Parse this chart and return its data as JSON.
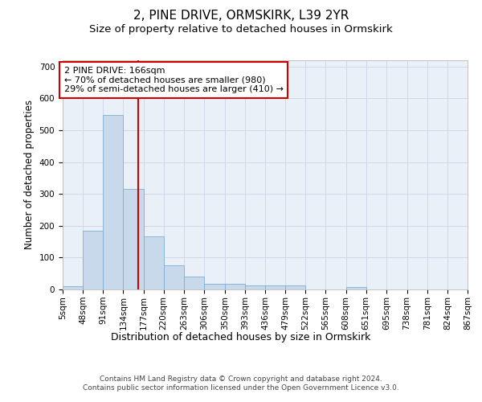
{
  "title": "2, PINE DRIVE, ORMSKIRK, L39 2YR",
  "subtitle": "Size of property relative to detached houses in Ormskirk",
  "xlabel": "Distribution of detached houses by size in Ormskirk",
  "ylabel": "Number of detached properties",
  "bin_edges": [
    5,
    48,
    91,
    134,
    177,
    220,
    263,
    306,
    350,
    393,
    436,
    479,
    522,
    565,
    608,
    651,
    695,
    738,
    781,
    824,
    867
  ],
  "bar_heights": [
    10,
    185,
    548,
    315,
    168,
    77,
    40,
    18,
    18,
    13,
    13,
    12,
    0,
    0,
    8,
    0,
    0,
    0,
    0,
    0
  ],
  "bar_color": "#c9d9ec",
  "bar_edge_color": "#7fadd4",
  "property_size": 166,
  "red_line_color": "#cc0000",
  "annotation_line1": "2 PINE DRIVE: 166sqm",
  "annotation_line2": "← 70% of detached houses are smaller (980)",
  "annotation_line3": "29% of semi-detached houses are larger (410) →",
  "annotation_box_color": "#ffffff",
  "annotation_box_edge": "#cc0000",
  "ylim": [
    0,
    720
  ],
  "yticks": [
    0,
    100,
    200,
    300,
    400,
    500,
    600,
    700
  ],
  "grid_color": "#d0d8e8",
  "background_color": "#eaf0f8",
  "footer_text": "Contains HM Land Registry data © Crown copyright and database right 2024.\nContains public sector information licensed under the Open Government Licence v3.0.",
  "title_fontsize": 11,
  "subtitle_fontsize": 9.5,
  "xlabel_fontsize": 9,
  "ylabel_fontsize": 8.5,
  "tick_fontsize": 7.5,
  "annotation_fontsize": 8,
  "footer_fontsize": 6.5
}
